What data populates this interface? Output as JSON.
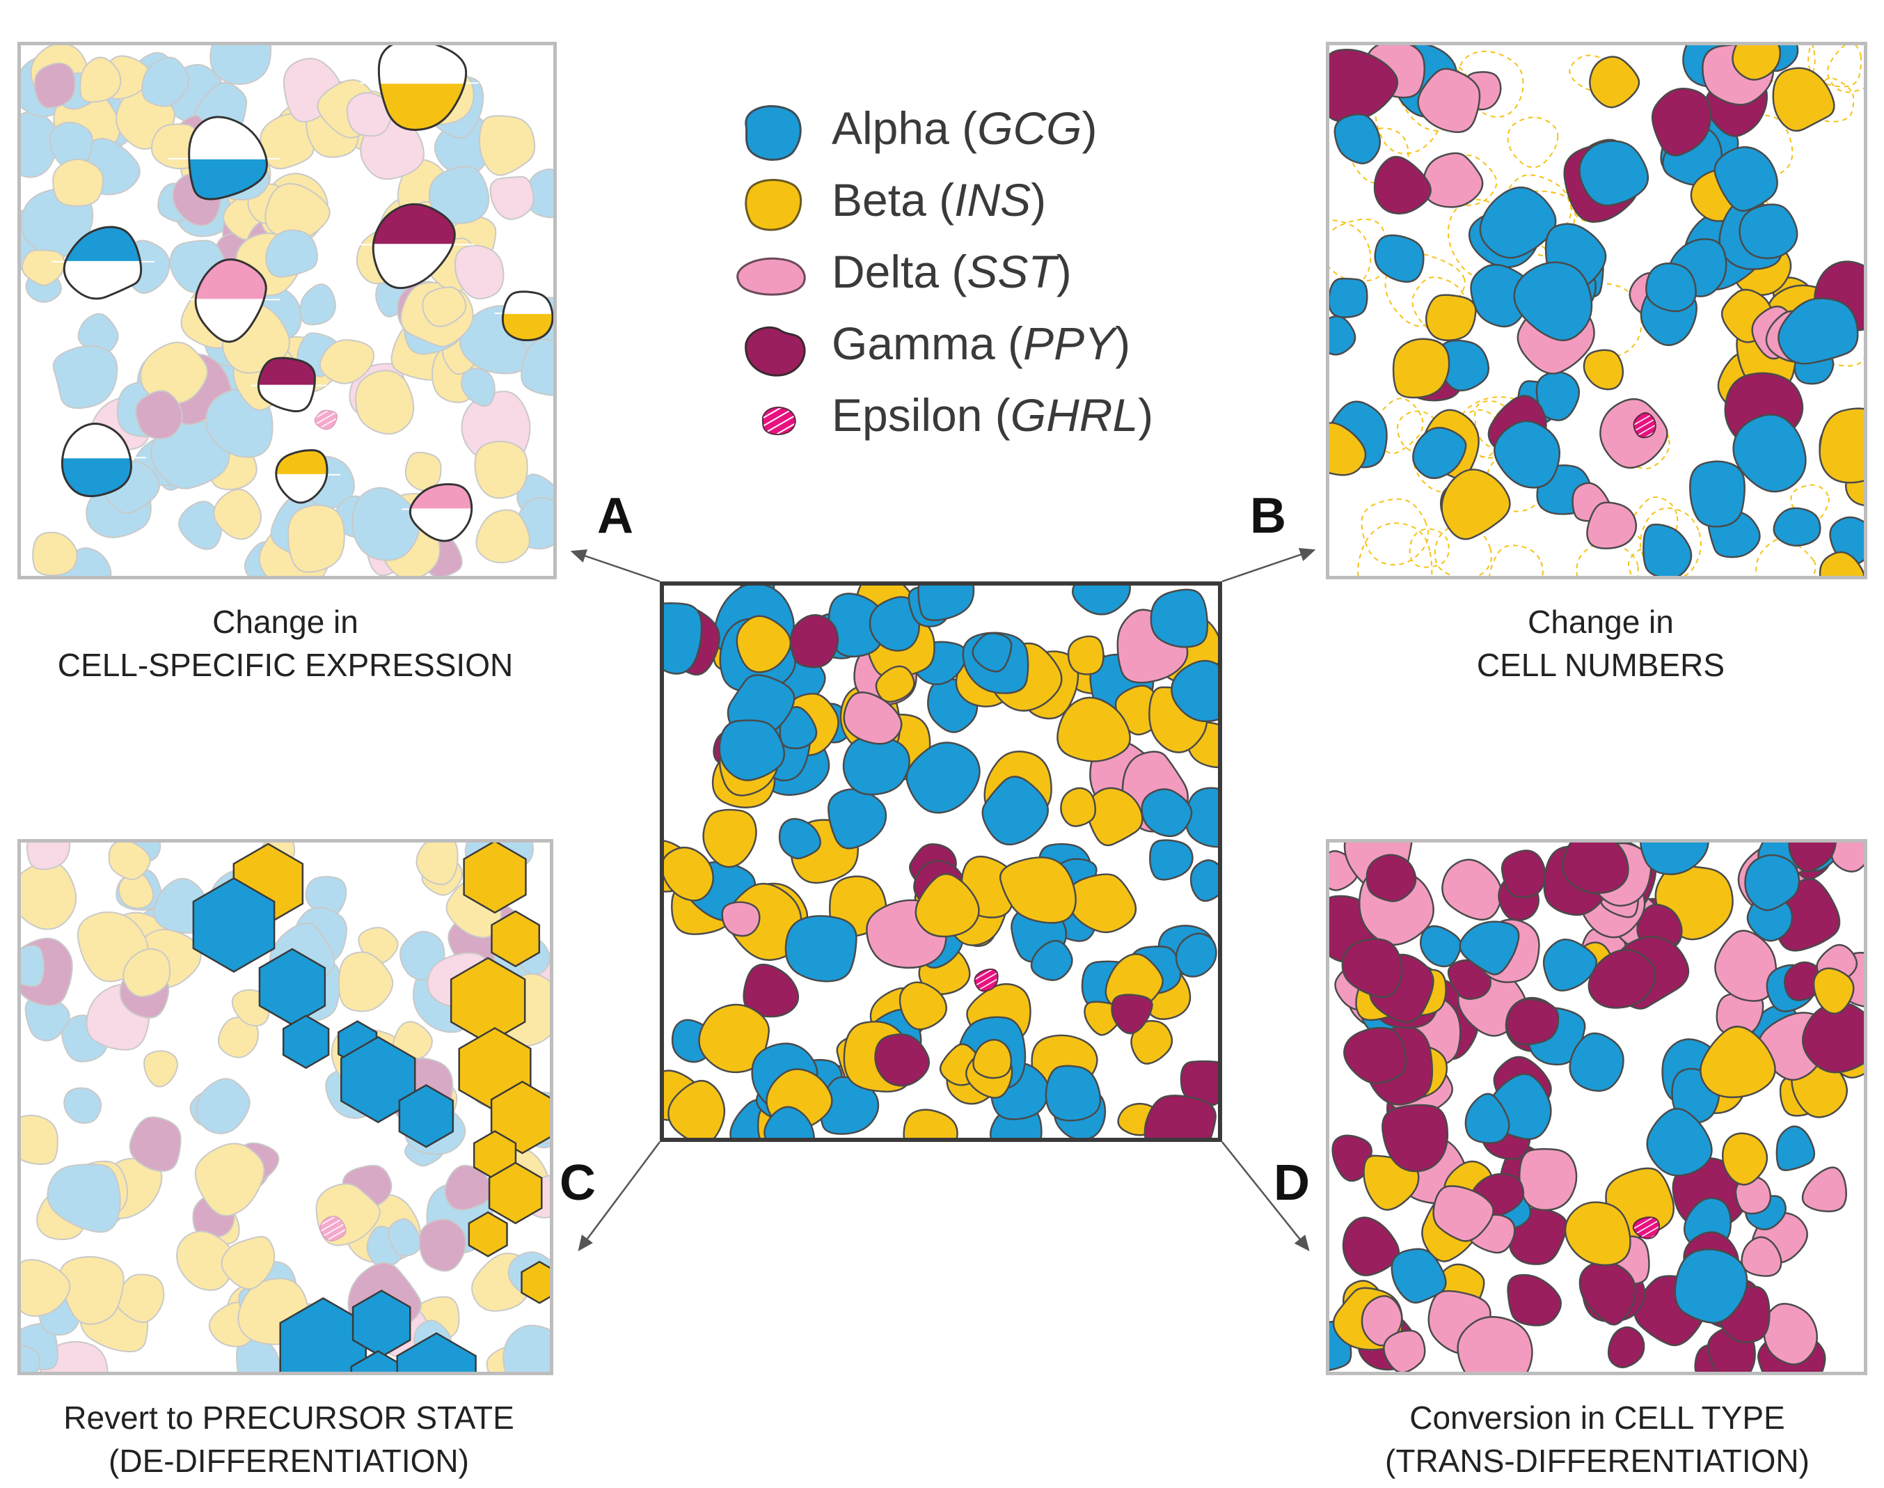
{
  "colors": {
    "alpha": "#1b9ad6",
    "beta": "#f5c214",
    "delta": "#f39bbf",
    "gamma": "#9b1e5e",
    "epsilon": "#e8117f",
    "alpha_faded": "#b3dbef",
    "beta_faded": "#fbe8a6",
    "delta_faded": "#f8d9e6",
    "gamma_faded": "#d8a9c4",
    "outline": "#4a4a4a"
  },
  "legend": [
    {
      "key": "alpha",
      "name": "Alpha",
      "gene": "GCG",
      "icon": "alpha-cell-icon"
    },
    {
      "key": "beta",
      "name": "Beta",
      "gene": "INS",
      "icon": "beta-cell-icon"
    },
    {
      "key": "delta",
      "name": "Delta",
      "gene": "SST",
      "icon": "delta-cell-icon"
    },
    {
      "key": "gamma",
      "name": "Gamma",
      "gene": "PPY",
      "icon": "gamma-cell-icon"
    },
    {
      "key": "epsilon",
      "name": "Epsilon",
      "gene": "GHRL",
      "icon": "epsilon-cell-icon"
    }
  ],
  "panels": {
    "a": {
      "letter": "A",
      "caption_line1": "Change in",
      "caption_line2": "CELL-SPECIFIC EXPRESSION"
    },
    "b": {
      "letter": "B",
      "caption_line1": "Change in",
      "caption_line2": "CELL NUMBERS"
    },
    "c": {
      "letter": "C",
      "caption_line1": "Revert to PRECURSOR STATE",
      "caption_line2": "(DE-DIFFERENTIATION)"
    },
    "d": {
      "letter": "D",
      "caption_line1": "Conversion in CELL TYPE",
      "caption_line2": "(TRANS-DIFFERENTIATION)"
    }
  }
}
